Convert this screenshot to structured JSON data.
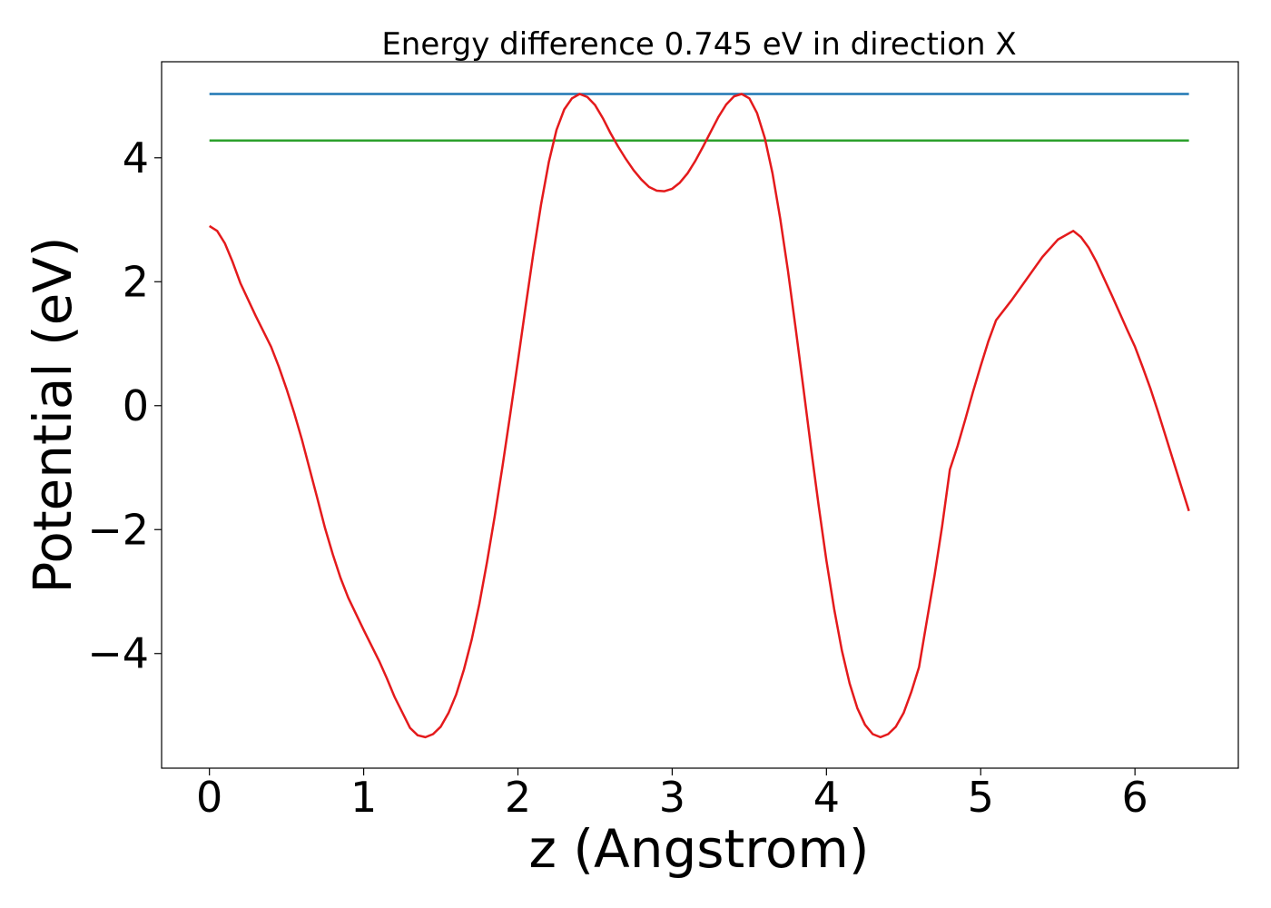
{
  "chart_data": {
    "type": "line",
    "title": "Energy difference 0.745 eV in direction X",
    "xlabel": "z (Angstrom)",
    "ylabel": "Potential (eV)",
    "xlim": [
      -0.31,
      6.67
    ],
    "ylim": [
      -5.85,
      5.55
    ],
    "xticks": [
      0,
      1,
      2,
      3,
      4,
      5,
      6
    ],
    "yticks": [
      -4,
      -2,
      0,
      2,
      4
    ],
    "ytick_labels": [
      "−4",
      "−2",
      "0",
      "2",
      "4"
    ],
    "grid": false,
    "legend": "none",
    "series": [
      {
        "color": "#1f77b4",
        "x": [
          0,
          6.35
        ],
        "y": [
          5.03,
          5.03
        ]
      },
      {
        "color": "#2ca02c",
        "x": [
          0,
          6.35
        ],
        "y": [
          4.28,
          4.28
        ]
      },
      {
        "color": "#e41a1c",
        "x": [
          0,
          0.05,
          0.1,
          0.15,
          0.2,
          0.3,
          0.4,
          0.45,
          0.5,
          0.55,
          0.6,
          0.7,
          0.75,
          0.8,
          0.85,
          0.9,
          1.0,
          1.1,
          1.15,
          1.2,
          1.3,
          1.35,
          1.4,
          1.45,
          1.5,
          1.55,
          1.6,
          1.65,
          1.7,
          1.75,
          1.8,
          1.85,
          1.9,
          1.95,
          2.0,
          2.05,
          2.1,
          2.15,
          2.2,
          2.25,
          2.3,
          2.35,
          2.4,
          2.45,
          2.5,
          2.55,
          2.6,
          2.65,
          2.7,
          2.75,
          2.8,
          2.85,
          2.9,
          2.95,
          3.0,
          3.05,
          3.1,
          3.15,
          3.2,
          3.25,
          3.3,
          3.35,
          3.4,
          3.45,
          3.5,
          3.55,
          3.6,
          3.65,
          3.7,
          3.75,
          3.8,
          3.85,
          3.9,
          3.95,
          4.0,
          4.05,
          4.1,
          4.15,
          4.2,
          4.25,
          4.3,
          4.35,
          4.4,
          4.45,
          4.5,
          4.55,
          4.6,
          4.65,
          4.7,
          4.75,
          4.8,
          4.85,
          4.9,
          4.95,
          5.0,
          5.05,
          5.1,
          5.2,
          5.3,
          5.4,
          5.5,
          5.6,
          5.65,
          5.7,
          5.75,
          5.8,
          5.85,
          5.9,
          5.95,
          6.0,
          6.05,
          6.1,
          6.15,
          6.2,
          6.25,
          6.3,
          6.35
        ],
        "y": [
          2.9,
          2.82,
          2.62,
          2.32,
          1.98,
          1.45,
          0.95,
          0.63,
          0.27,
          -0.12,
          -0.55,
          -1.5,
          -1.98,
          -2.4,
          -2.78,
          -3.1,
          -3.62,
          -4.12,
          -4.4,
          -4.7,
          -5.2,
          -5.32,
          -5.35,
          -5.3,
          -5.18,
          -4.96,
          -4.66,
          -4.26,
          -3.78,
          -3.2,
          -2.52,
          -1.78,
          -0.98,
          -0.14,
          0.72,
          1.6,
          2.46,
          3.25,
          3.93,
          4.45,
          4.78,
          4.96,
          5.03,
          4.98,
          4.85,
          4.64,
          4.4,
          4.18,
          3.98,
          3.8,
          3.65,
          3.53,
          3.47,
          3.46,
          3.5,
          3.6,
          3.75,
          3.95,
          4.18,
          4.42,
          4.66,
          4.86,
          4.99,
          5.03,
          4.96,
          4.72,
          4.32,
          3.75,
          3.02,
          2.18,
          1.26,
          0.3,
          -0.68,
          -1.62,
          -2.5,
          -3.28,
          -3.95,
          -4.48,
          -4.88,
          -5.15,
          -5.3,
          -5.35,
          -5.3,
          -5.18,
          -4.96,
          -4.62,
          -4.22,
          -3.48,
          -2.75,
          -1.94,
          -1.03,
          -0.65,
          -0.22,
          0.22,
          0.64,
          1.04,
          1.38,
          1.7,
          2.05,
          2.4,
          2.68,
          2.82,
          2.72,
          2.55,
          2.32,
          2.05,
          1.78,
          1.5,
          1.22,
          0.95,
          0.62,
          0.28,
          -0.1,
          -0.5,
          -0.9,
          -1.3,
          -1.7
        ]
      }
    ]
  }
}
